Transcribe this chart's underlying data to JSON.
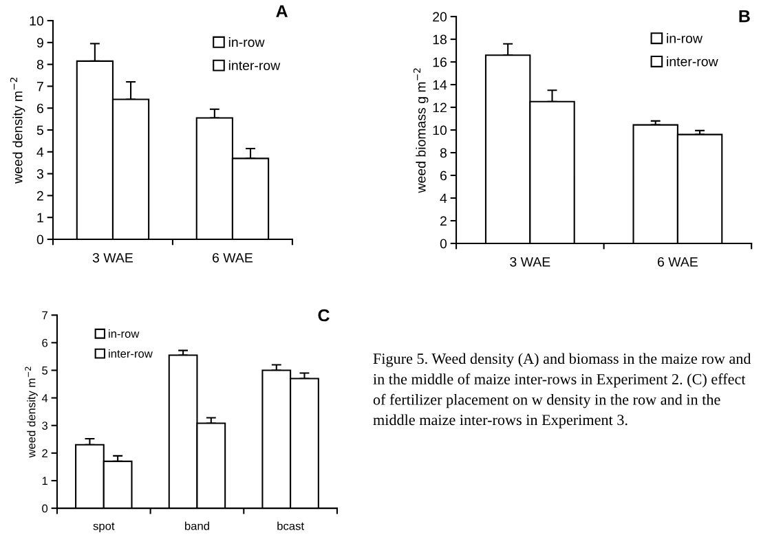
{
  "chart_data": [
    {
      "type": "bar",
      "title": "A",
      "ylabel": "weed density m$^{−2}$",
      "categories": [
        "3 WAE",
        "6 WAE"
      ],
      "ylim": [
        0,
        10
      ],
      "yticks": [
        0,
        1,
        2,
        3,
        4,
        5,
        6,
        7,
        8,
        9,
        10
      ],
      "legend": "top right",
      "grid": false,
      "series": [
        {
          "name": "in-row",
          "color": "#ffffff",
          "values": [
            8.15,
            5.55
          ],
          "errors": [
            [
              8.15,
              8.95
            ],
            [
              5.55,
              5.95
            ]
          ]
        },
        {
          "name": "inter-row",
          "color": "#ffffff",
          "values": [
            6.4,
            3.7
          ],
          "errors": [
            [
              6.4,
              7.2
            ],
            [
              3.7,
              4.15
            ]
          ]
        }
      ]
    },
    {
      "type": "bar",
      "title": "B",
      "ylabel": "weed biomass g m$^{−2}$",
      "categories": [
        "3 WAE",
        "6 WAE"
      ],
      "ylim": [
        0,
        20
      ],
      "yticks": [
        0,
        2,
        4,
        6,
        8,
        10,
        12,
        14,
        16,
        18,
        20
      ],
      "legend": "top right",
      "grid": false,
      "series": [
        {
          "name": "in-row",
          "color": "#ffffff",
          "values": [
            16.6,
            10.45
          ],
          "errors": [
            [
              16.6,
              17.6
            ],
            [
              10.45,
              10.8
            ]
          ]
        },
        {
          "name": "inter-row",
          "color": "#ffffff",
          "values": [
            12.5,
            9.6
          ],
          "errors": [
            [
              12.5,
              13.5
            ],
            [
              9.6,
              9.95
            ]
          ]
        }
      ]
    },
    {
      "type": "bar",
      "title": "C",
      "ylabel": "weed density m$^{−2}$",
      "categories": [
        "spot",
        "band",
        "bcast"
      ],
      "ylim": [
        0,
        7
      ],
      "yticks": [
        0,
        1,
        2,
        3,
        4,
        5,
        6,
        7
      ],
      "legend": "top left",
      "grid": false,
      "series": [
        {
          "name": "in-row",
          "color": "#ffffff",
          "values": [
            2.3,
            5.55,
            5.0
          ],
          "errors": [
            [
              2.3,
              2.52
            ],
            [
              5.55,
              5.72
            ],
            [
              5.0,
              5.2
            ]
          ]
        },
        {
          "name": "inter-row",
          "color": "#ffffff",
          "values": [
            1.7,
            3.08,
            4.7
          ],
          "errors": [
            [
              1.7,
              1.9
            ],
            [
              3.08,
              3.28
            ],
            [
              4.7,
              4.9
            ]
          ]
        }
      ],
      "annotations": [
        "Figure 5. Weed density (A) and biomass in the maize row and in the middle of maize inter-rows in Experiment 2. (C) effect of fertilizer placement on w density in the row and in the middle maize inter-rows in Experiment 3."
      ]
    }
  ]
}
